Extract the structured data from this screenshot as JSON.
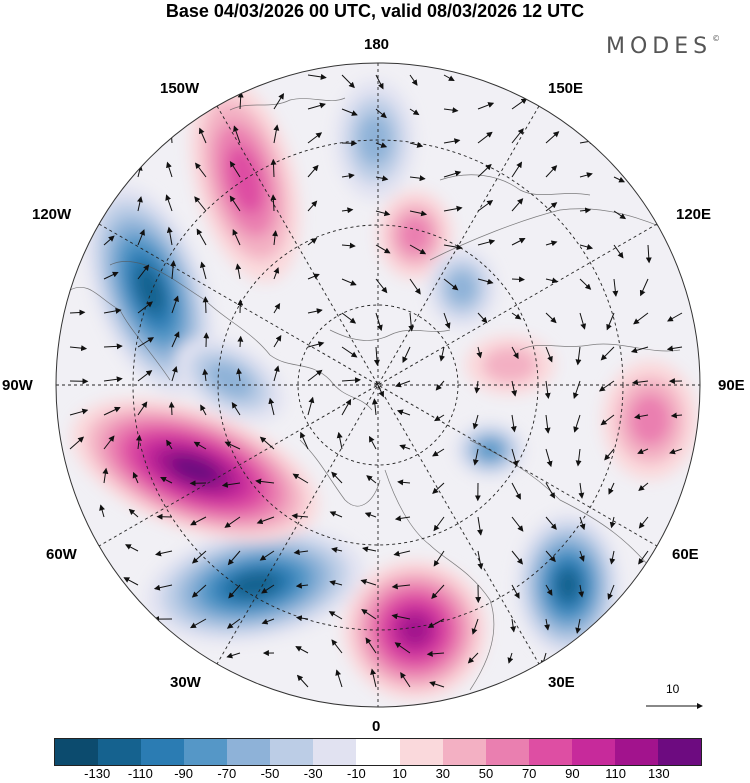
{
  "title": "Base 04/03/2026 00 UTC, valid 08/03/2026 12 UTC",
  "logo": {
    "text": "MODES",
    "mark": "©"
  },
  "longitude_labels": {
    "top": "180",
    "bottom": "0",
    "left": "90W",
    "right": "90E",
    "upper_left_1": "150W",
    "upper_left_2": "120W",
    "upper_right_1": "150E",
    "upper_right_2": "120E",
    "lower_left_1": "60W",
    "lower_left_2": "30W",
    "lower_right_1": "60E",
    "lower_right_2": "30E"
  },
  "vector_reference": {
    "label": "10"
  },
  "colorbar": {
    "colors": [
      "#0c4b6e",
      "#15628f",
      "#2b7cb3",
      "#5597c7",
      "#8eb2d8",
      "#bccde6",
      "#e1e2f1",
      "#ffffff",
      "#fad9dc",
      "#f3b0c3",
      "#ea7fb0",
      "#de4ea3",
      "#c72a9b",
      "#a2138d",
      "#6d0b80"
    ],
    "tick_labels": [
      "-130",
      "-110",
      "-90",
      "-70",
      "-50",
      "-30",
      "-10",
      "10",
      "30",
      "50",
      "70",
      "90",
      "110",
      "130"
    ]
  },
  "field_anomalies": [
    {
      "name": "north-america-west-low",
      "sign": "negative",
      "level": 5
    },
    {
      "name": "north-pacific-ridge",
      "sign": "positive",
      "level": 3
    },
    {
      "name": "bering-low",
      "sign": "negative",
      "level": 2
    },
    {
      "name": "chukchi-ridge",
      "sign": "positive",
      "level": 2
    },
    {
      "name": "east-siberia-low",
      "sign": "negative",
      "level": 2
    },
    {
      "name": "central-siberia-ridge",
      "sign": "positive",
      "level": 1
    },
    {
      "name": "central-asia-ridge",
      "sign": "positive",
      "level": 2
    },
    {
      "name": "arctic-low",
      "sign": "negative",
      "level": 3
    },
    {
      "name": "caspian-low",
      "sign": "negative",
      "level": 5
    },
    {
      "name": "europe-ridge",
      "sign": "positive",
      "level": 5
    },
    {
      "name": "north-atlantic-low",
      "sign": "negative",
      "level": 5
    },
    {
      "name": "western-atlantic-ridge",
      "sign": "positive",
      "level": 6
    },
    {
      "name": "canada-low",
      "sign": "negative",
      "level": 2
    }
  ]
}
